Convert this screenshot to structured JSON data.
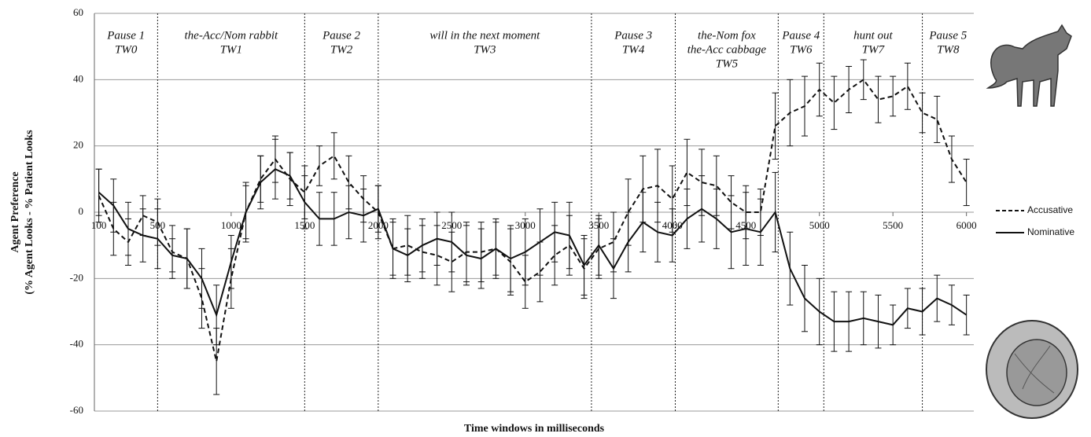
{
  "chart_data": {
    "type": "line",
    "y_label": [
      "Agent Preference",
      "(% Agent Looks - % Patient Looks"
    ],
    "x_label": "Time windows in milliseconds",
    "x": [
      100,
      200,
      300,
      400,
      500,
      600,
      700,
      800,
      900,
      1000,
      1100,
      1200,
      1300,
      1400,
      1500,
      1600,
      1700,
      1800,
      1900,
      2000,
      2100,
      2200,
      2300,
      2400,
      2500,
      2600,
      2700,
      2800,
      2900,
      3000,
      3100,
      3200,
      3300,
      3400,
      3500,
      3600,
      3700,
      3800,
      3900,
      4000,
      4100,
      4200,
      4300,
      4400,
      4500,
      4600,
      4700,
      4800,
      4900,
      5000,
      5100,
      5200,
      5300,
      5400,
      5500,
      5600,
      5700,
      5800,
      5900,
      6000
    ],
    "series": [
      {
        "name": "Accusative",
        "color": "#111111",
        "dash": true,
        "values": [
          5,
          -5,
          -9,
          -1,
          -3,
          -12,
          -14,
          -26,
          -45,
          -20,
          0,
          10,
          16,
          10,
          6,
          14,
          17,
          9,
          4,
          0,
          -11,
          -10,
          -12,
          -13,
          -15,
          -12,
          -12,
          -11,
          -15,
          -21,
          -18,
          -13,
          -10,
          -17,
          -11,
          -9,
          0,
          7,
          8,
          4,
          12,
          9,
          8,
          3,
          0,
          0,
          26,
          30,
          32,
          37,
          33,
          37,
          40,
          34,
          35,
          38,
          30,
          28,
          16,
          9
        ],
        "errors": [
          8,
          8,
          7,
          6,
          7,
          8,
          9,
          9,
          10,
          9,
          9,
          7,
          7,
          8,
          8,
          6,
          7,
          8,
          7,
          8,
          8,
          9,
          8,
          9,
          9,
          9,
          9,
          8,
          10,
          8,
          9,
          9,
          9,
          9,
          9,
          9,
          10,
          10,
          11,
          10,
          10,
          10,
          9,
          8,
          8,
          7,
          10,
          10,
          9,
          8,
          8,
          7,
          6,
          7,
          6,
          7,
          6,
          7,
          7,
          7
        ]
      },
      {
        "name": "Nominative",
        "color": "#111111",
        "dash": false,
        "values": [
          6,
          2,
          -5,
          -7,
          -8,
          -13,
          -14,
          -20,
          -31,
          -15,
          0,
          9,
          13,
          11,
          3,
          -2,
          -2,
          0,
          -1,
          1,
          -11,
          -13,
          -10,
          -8,
          -9,
          -13,
          -14,
          -11,
          -14,
          -12,
          -9,
          -6,
          -7,
          -16,
          -10,
          -17,
          -9,
          -3,
          -6,
          -7,
          -2,
          1,
          -2,
          -6,
          -5,
          -6,
          0,
          -17,
          -26,
          -30,
          -33,
          -33,
          -32,
          -33,
          -34,
          -29,
          -30,
          -26,
          -28,
          -31
        ],
        "errors": [
          7,
          8,
          8,
          8,
          9,
          5,
          9,
          9,
          9,
          8,
          8,
          8,
          9,
          7,
          8,
          8,
          8,
          8,
          8,
          7,
          9,
          8,
          8,
          8,
          9,
          9,
          9,
          9,
          10,
          10,
          10,
          9,
          10,
          9,
          9,
          9,
          9,
          9,
          9,
          8,
          9,
          10,
          9,
          11,
          11,
          10,
          12,
          11,
          10,
          10,
          9,
          9,
          8,
          8,
          6,
          6,
          7,
          7,
          6,
          6
        ]
      }
    ],
    "xlim": [
      70,
      6050
    ],
    "xticks": [
      100,
      500,
      1000,
      1500,
      2000,
      2500,
      3000,
      3500,
      4000,
      4500,
      5000,
      5500,
      6000
    ],
    "ylim": [
      -60,
      60
    ],
    "yticks": [
      -60,
      -40,
      -20,
      0,
      20,
      40,
      60
    ],
    "grid": true,
    "legend": "right",
    "dividers": [
      500,
      1500,
      2000,
      3450,
      4020,
      4720,
      5030,
      5700
    ],
    "segments": [
      [
        "Pause 1",
        "TW0"
      ],
      [
        "the-Acc/Nom rabbit",
        "TW1"
      ],
      [
        "Pause 2",
        "TW2"
      ],
      [
        "will in the next moment",
        "TW3"
      ],
      [
        "Pause 3",
        "TW4"
      ],
      [
        "the-Nom fox",
        "the-Acc cabbage",
        "TW5"
      ],
      [
        "Pause 4",
        "TW6"
      ],
      [
        "hunt out",
        "TW7"
      ],
      [
        "Pause 5",
        "TW8"
      ]
    ]
  }
}
